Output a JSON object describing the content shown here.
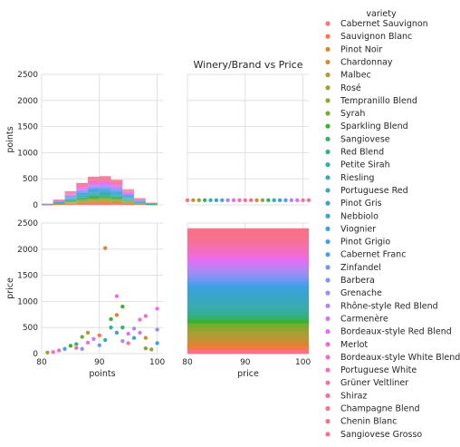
{
  "chart_data": {
    "type": "scatter",
    "title": "Winery/Brand vs Price",
    "x_vars": [
      "points",
      "price"
    ],
    "y_vars": [
      "points",
      "price"
    ],
    "panels": {
      "top_left": {
        "type": "stacked-histogram",
        "x": "points",
        "y": "points",
        "xlim": [
          80,
          101
        ],
        "ylim": [
          0,
          2500
        ]
      },
      "top_right": {
        "type": "scatter",
        "x": "price",
        "y": "points",
        "xlim": [
          80,
          101
        ],
        "ylim": [
          0,
          2500
        ]
      },
      "bottom_left": {
        "type": "scatter",
        "x": "points",
        "y": "price",
        "xlim": [
          80,
          101
        ],
        "ylim": [
          0,
          2500
        ]
      },
      "bottom_right": {
        "type": "stacked-histogram",
        "x": "price",
        "y": "price",
        "xlim": [
          80,
          101
        ],
        "ylim": [
          0,
          2500
        ]
      }
    },
    "y_ticks": [
      "0",
      "500",
      "1000",
      "1500",
      "2000",
      "2500"
    ],
    "x_ticks": [
      "80",
      "90",
      "100"
    ],
    "xlabel_left": "points",
    "xlabel_right": "price",
    "ylabel_top": "points",
    "ylabel_bottom": "price",
    "legend": {
      "title": "variety",
      "placement": "right",
      "entries": [
        {
          "name": "Cabernet Sauvignon",
          "color": "#f77189"
        },
        {
          "name": "Sauvignon Blanc",
          "color": "#f7754f"
        },
        {
          "name": "Pinot Noir",
          "color": "#dd8431"
        },
        {
          "name": "Chardonnay",
          "color": "#c79032"
        },
        {
          "name": "Malbec",
          "color": "#b59a32"
        },
        {
          "name": "Rosé",
          "color": "#a4a031"
        },
        {
          "name": "Tempranillo Blend",
          "color": "#90a631"
        },
        {
          "name": "Syrah",
          "color": "#73ad31"
        },
        {
          "name": "Sparkling Blend",
          "color": "#3bb133"
        },
        {
          "name": "Sangiovese",
          "color": "#33b06b"
        },
        {
          "name": "Red Blend",
          "color": "#35ae91"
        },
        {
          "name": "Petite Sirah",
          "color": "#36ada2"
        },
        {
          "name": "Riesling",
          "color": "#37abaf"
        },
        {
          "name": "Portuguese Red",
          "color": "#38a9b9"
        },
        {
          "name": "Pinot Gris",
          "color": "#39a7c3"
        },
        {
          "name": "Nebbiolo",
          "color": "#3aa5cd"
        },
        {
          "name": "Viognier",
          "color": "#3ba2d8"
        },
        {
          "name": "Pinot Grigio",
          "color": "#3ea0e3"
        },
        {
          "name": "Cabernet Franc",
          "color": "#4f9cf0"
        },
        {
          "name": "Zinfandel",
          "color": "#6e97f4"
        },
        {
          "name": "Barbera",
          "color": "#8a91f4"
        },
        {
          "name": "Grenache",
          "color": "#a28bf4"
        },
        {
          "name": "Rhône-style Red Blend",
          "color": "#b884f4"
        },
        {
          "name": "Carmenère",
          "color": "#cc7af4"
        },
        {
          "name": "Bordeaux-style Red Blend",
          "color": "#e06ff1"
        },
        {
          "name": "Merlot",
          "color": "#f06ae0"
        },
        {
          "name": "Bordeaux-style White Blend",
          "color": "#f36cca"
        },
        {
          "name": "Portuguese White",
          "color": "#f46db8"
        },
        {
          "name": "Grüner Veltliner",
          "color": "#f56fa8"
        },
        {
          "name": "Shiraz",
          "color": "#f6709a"
        },
        {
          "name": "Champagne Blend",
          "color": "#f77190"
        },
        {
          "name": "Chenin Blanc",
          "color": "#f77189"
        },
        {
          "name": "Sangiovese Grosso",
          "color": "#f7718a"
        }
      ]
    },
    "histogram_points": {
      "bins": [
        80,
        82,
        84,
        86,
        88,
        90,
        92,
        94,
        96,
        98,
        100
      ],
      "totals": [
        20,
        100,
        260,
        420,
        540,
        550,
        480,
        300,
        130,
        40
      ]
    },
    "scatter_points_vs_price": [
      {
        "x": 81,
        "y": 20,
        "c": 5
      },
      {
        "x": 82,
        "y": 30,
        "c": 25
      },
      {
        "x": 83,
        "y": 60,
        "c": 26
      },
      {
        "x": 84,
        "y": 90,
        "c": 18
      },
      {
        "x": 85,
        "y": 150,
        "c": 8
      },
      {
        "x": 86,
        "y": 180,
        "c": 9
      },
      {
        "x": 86,
        "y": 110,
        "c": 29
      },
      {
        "x": 87,
        "y": 320,
        "c": 7
      },
      {
        "x": 87,
        "y": 90,
        "c": 20
      },
      {
        "x": 88,
        "y": 210,
        "c": 26
      },
      {
        "x": 88,
        "y": 400,
        "c": 3
      },
      {
        "x": 89,
        "y": 280,
        "c": 23
      },
      {
        "x": 90,
        "y": 160,
        "c": 19
      },
      {
        "x": 90,
        "y": 350,
        "c": 1
      },
      {
        "x": 91,
        "y": 2020,
        "c": 2
      },
      {
        "x": 91,
        "y": 260,
        "c": 11
      },
      {
        "x": 92,
        "y": 660,
        "c": 8
      },
      {
        "x": 92,
        "y": 500,
        "c": 10
      },
      {
        "x": 93,
        "y": 740,
        "c": 2
      },
      {
        "x": 93,
        "y": 400,
        "c": 17
      },
      {
        "x": 93,
        "y": 1100,
        "c": 25
      },
      {
        "x": 94,
        "y": 240,
        "c": 21
      },
      {
        "x": 94,
        "y": 500,
        "c": 9
      },
      {
        "x": 94,
        "y": 900,
        "c": 8
      },
      {
        "x": 95,
        "y": 380,
        "c": 24
      },
      {
        "x": 95,
        "y": 200,
        "c": 30
      },
      {
        "x": 96,
        "y": 480,
        "c": 21
      },
      {
        "x": 96,
        "y": 300,
        "c": 14
      },
      {
        "x": 97,
        "y": 650,
        "c": 26
      },
      {
        "x": 97,
        "y": 400,
        "c": 22
      },
      {
        "x": 98,
        "y": 300,
        "c": 3
      },
      {
        "x": 98,
        "y": 720,
        "c": 27
      },
      {
        "x": 98,
        "y": 100,
        "c": 7
      },
      {
        "x": 99,
        "y": 80,
        "c": 6
      },
      {
        "x": 100,
        "y": 860,
        "c": 25
      },
      {
        "x": 100,
        "y": 460,
        "c": 20
      },
      {
        "x": 100,
        "y": 200,
        "c": 16
      }
    ],
    "scatter_price_vs_points": {
      "y_value": 90,
      "x_values": [
        80,
        81,
        82,
        83,
        84,
        85,
        86,
        87,
        88,
        89,
        90,
        91,
        92,
        93,
        94,
        95,
        96,
        97,
        98,
        99,
        100,
        101
      ]
    },
    "histogram_price": {
      "bins": [
        80,
        101
      ],
      "stack_total": 2400
    }
  }
}
